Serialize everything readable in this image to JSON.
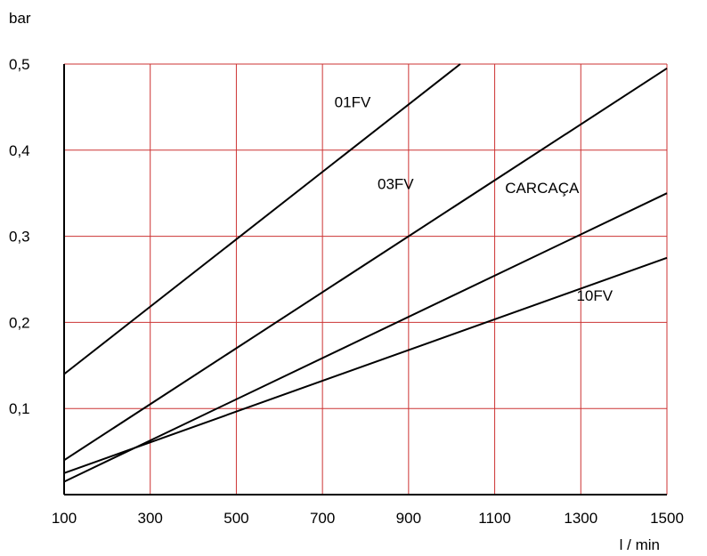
{
  "chart_data": {
    "type": "line",
    "title": "",
    "xlabel": "l / min",
    "ylabel": "bar",
    "xlim": [
      100,
      1500
    ],
    "ylim": [
      0,
      0.5
    ],
    "grid": true,
    "grid_color": "#cc3333",
    "line_color": "#000000",
    "x_ticks": [
      "100",
      "300",
      "500",
      "700",
      "900",
      "1100",
      "1300",
      "1500"
    ],
    "y_ticks": [
      "0,1",
      "0,2",
      "0,3",
      "0,4",
      "0,5"
    ],
    "series": [
      {
        "name": "01FV",
        "points": [
          [
            100,
            0.14
          ],
          [
            1020,
            0.5
          ]
        ]
      },
      {
        "name": "03FV",
        "points": [
          [
            100,
            0.04
          ],
          [
            1500,
            0.495
          ]
        ]
      },
      {
        "name": "CARCAÇA",
        "points": [
          [
            100,
            0.015
          ],
          [
            1500,
            0.35
          ]
        ]
      },
      {
        "name": "10FV",
        "points": [
          [
            100,
            0.025
          ],
          [
            1500,
            0.275
          ]
        ]
      }
    ]
  }
}
